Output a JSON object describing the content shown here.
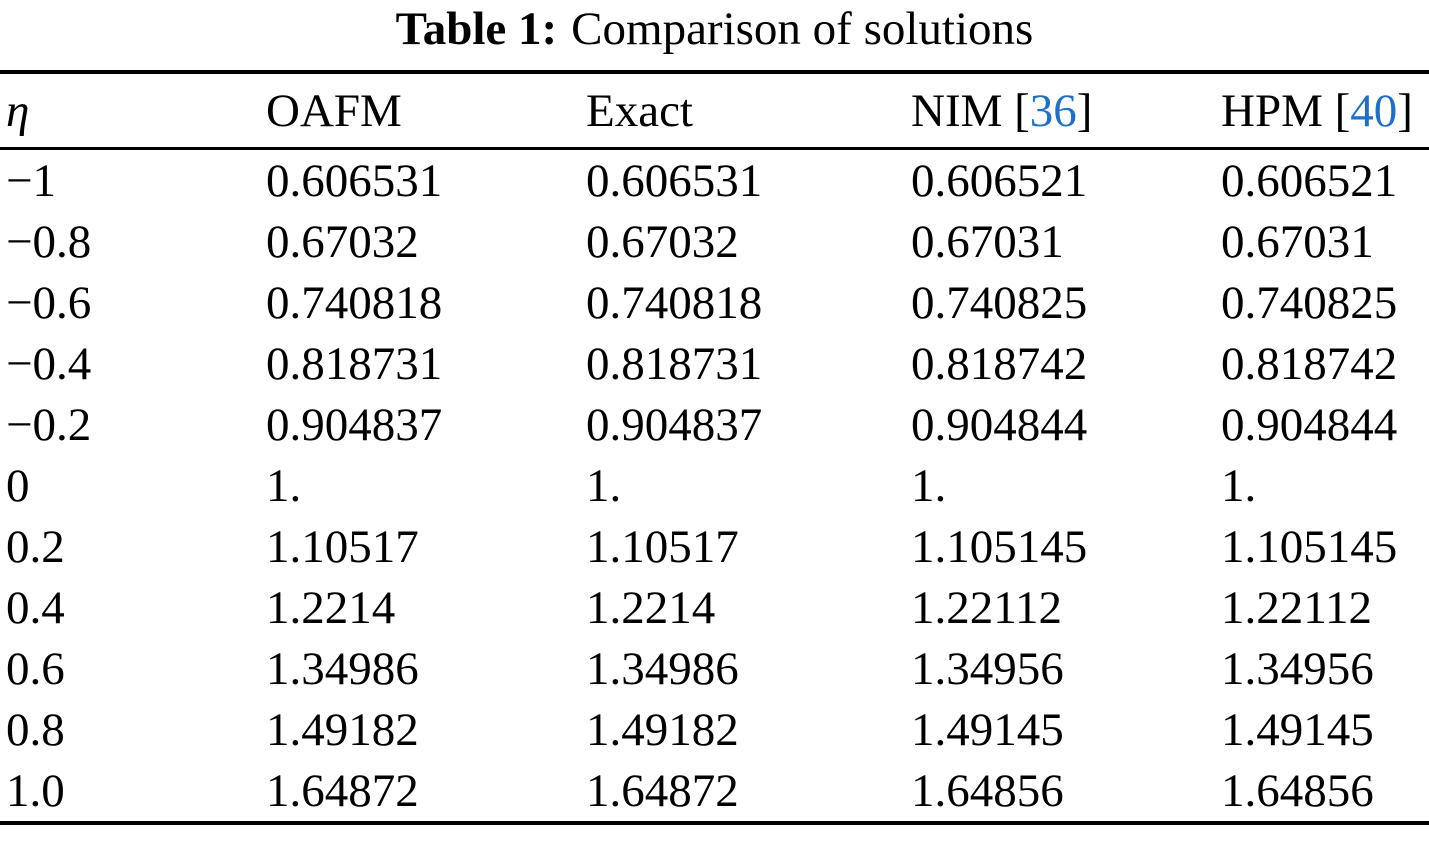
{
  "caption": {
    "label": "Table 1:",
    "text": "Comparison of solutions"
  },
  "colors": {
    "citation_blue": "#1E6FC8",
    "rule": "#000000",
    "text": "#000000",
    "background": "#ffffff"
  },
  "table": {
    "columns": [
      {
        "label": "η"
      },
      {
        "label": "OAFM"
      },
      {
        "label": "Exact"
      },
      {
        "label": "NIM",
        "cite": {
          "open": "[",
          "num": "36",
          "close": "]"
        }
      },
      {
        "label": "HPM",
        "cite": {
          "open": "[",
          "num": "40",
          "close": "]"
        }
      }
    ],
    "rows": [
      [
        "−1",
        "0.606531",
        "0.606531",
        "0.606521",
        "0.606521"
      ],
      [
        "−0.8",
        "0.67032",
        "0.67032",
        "0.67031",
        "0.67031"
      ],
      [
        "−0.6",
        "0.740818",
        "0.740818",
        "0.740825",
        "0.740825"
      ],
      [
        "−0.4",
        "0.818731",
        "0.818731",
        "0.818742",
        "0.818742"
      ],
      [
        "−0.2",
        "0.904837",
        "0.904837",
        "0.904844",
        "0.904844"
      ],
      [
        "0",
        "1.",
        "1.",
        "1.",
        "1."
      ],
      [
        "0.2",
        "1.10517",
        "1.10517",
        "1.105145",
        "1.105145"
      ],
      [
        "0.4",
        "1.2214",
        "1.2214",
        "1.22112",
        "1.22112"
      ],
      [
        "0.6",
        "1.34986",
        "1.34986",
        "1.34956",
        "1.34956"
      ],
      [
        "0.8",
        "1.49182",
        "1.49182",
        "1.49145",
        "1.49145"
      ],
      [
        "1.0",
        "1.64872",
        "1.64872",
        "1.64856",
        "1.64856"
      ]
    ]
  }
}
